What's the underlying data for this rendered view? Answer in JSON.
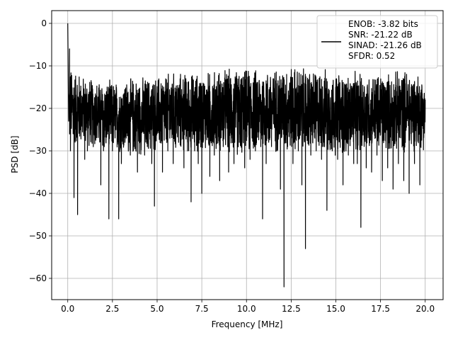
{
  "chart_data": {
    "type": "line",
    "xlabel": "Frequency [MHz]",
    "ylabel": "PSD [dB]",
    "xlim": [
      -0.9,
      21.0
    ],
    "ylim": [
      -65,
      3
    ],
    "xticks": [
      0.0,
      2.5,
      5.0,
      7.5,
      10.0,
      12.5,
      15.0,
      17.5,
      20.0
    ],
    "xtick_labels": [
      "0.0",
      "2.5",
      "5.0",
      "7.5",
      "10.0",
      "12.5",
      "15.0",
      "17.5",
      "20.0"
    ],
    "yticks": [
      0,
      -10,
      -20,
      -30,
      -40,
      -50,
      -60
    ],
    "ytick_labels": [
      "0",
      "−10",
      "−20",
      "−30",
      "−40",
      "−50",
      "−60"
    ],
    "grid": true,
    "legend_position": "top-right",
    "series": [
      {
        "name": "ENOB: -3.82 bits\nSNR: -21.22 dB\nSINAD: -21.26 dB\nSFDR: 0.52",
        "color": "#000000",
        "x": [
          0.0,
          0.05,
          0.1,
          0.15,
          0.2,
          0.3,
          0.35,
          0.45,
          0.55,
          0.7,
          0.85,
          0.95,
          1.1,
          1.3,
          1.5,
          1.7,
          1.85,
          2.0,
          2.2,
          2.3,
          2.5,
          2.7,
          2.85,
          3.0,
          3.2,
          3.5,
          3.7,
          3.9,
          4.1,
          4.3,
          4.5,
          4.7,
          4.85,
          5.0,
          5.3,
          5.6,
          5.9,
          6.2,
          6.5,
          6.7,
          6.9,
          7.1,
          7.3,
          7.5,
          7.7,
          7.95,
          8.2,
          8.5,
          8.7,
          9.0,
          9.3,
          9.6,
          9.9,
          10.2,
          10.5,
          10.8,
          10.9,
          11.1,
          11.4,
          11.7,
          11.9,
          12.1,
          12.3,
          12.6,
          12.9,
          13.1,
          13.3,
          13.6,
          13.9,
          14.2,
          14.5,
          14.8,
          15.1,
          15.4,
          15.7,
          16.0,
          16.2,
          16.4,
          16.7,
          17.0,
          17.3,
          17.6,
          17.9,
          18.2,
          18.5,
          18.8,
          19.1,
          19.4,
          19.7,
          20.0
        ],
        "y": [
          0,
          -23,
          -6,
          -30,
          -21,
          -26,
          -41,
          -18,
          -45,
          -25,
          -20,
          -32,
          -30,
          -25,
          -24,
          -19,
          -38,
          -30,
          -24,
          -46,
          -30,
          -22,
          -46,
          -33,
          -28,
          -31,
          -29,
          -35,
          -28,
          -31,
          -27,
          -33,
          -43,
          -25,
          -35,
          -30,
          -33,
          -28,
          -34,
          -30,
          -42,
          -30,
          -33,
          -40,
          -27,
          -36,
          -31,
          -37,
          -29,
          -35,
          -33,
          -28,
          -34,
          -32,
          -30,
          -29,
          -46,
          -33,
          -29,
          -30,
          -39,
          -62,
          -29,
          -33,
          -30,
          -38,
          -53,
          -31,
          -30,
          -32,
          -44,
          -30,
          -32,
          -38,
          -31,
          -33,
          -33,
          -48,
          -34,
          -35,
          -31,
          -37,
          -34,
          -39,
          -33,
          -37,
          -40,
          -33,
          -38,
          -18
        ]
      }
    ],
    "envelope": {
      "upper": [
        -9,
        -12,
        -13,
        -13,
        -12,
        -12,
        -11,
        -11,
        -11,
        -10,
        -10,
        -10,
        -10,
        -9,
        -10,
        -10,
        -11,
        -11,
        -11,
        -11,
        -10,
        -12
      ],
      "lower": [
        -30,
        -29,
        -31,
        -31,
        -32,
        -31,
        -31,
        -31,
        -31,
        -31,
        -32,
        -31,
        -31,
        -31,
        -31,
        -31,
        -32,
        -31,
        -31,
        -31,
        -31,
        -30
      ]
    }
  }
}
